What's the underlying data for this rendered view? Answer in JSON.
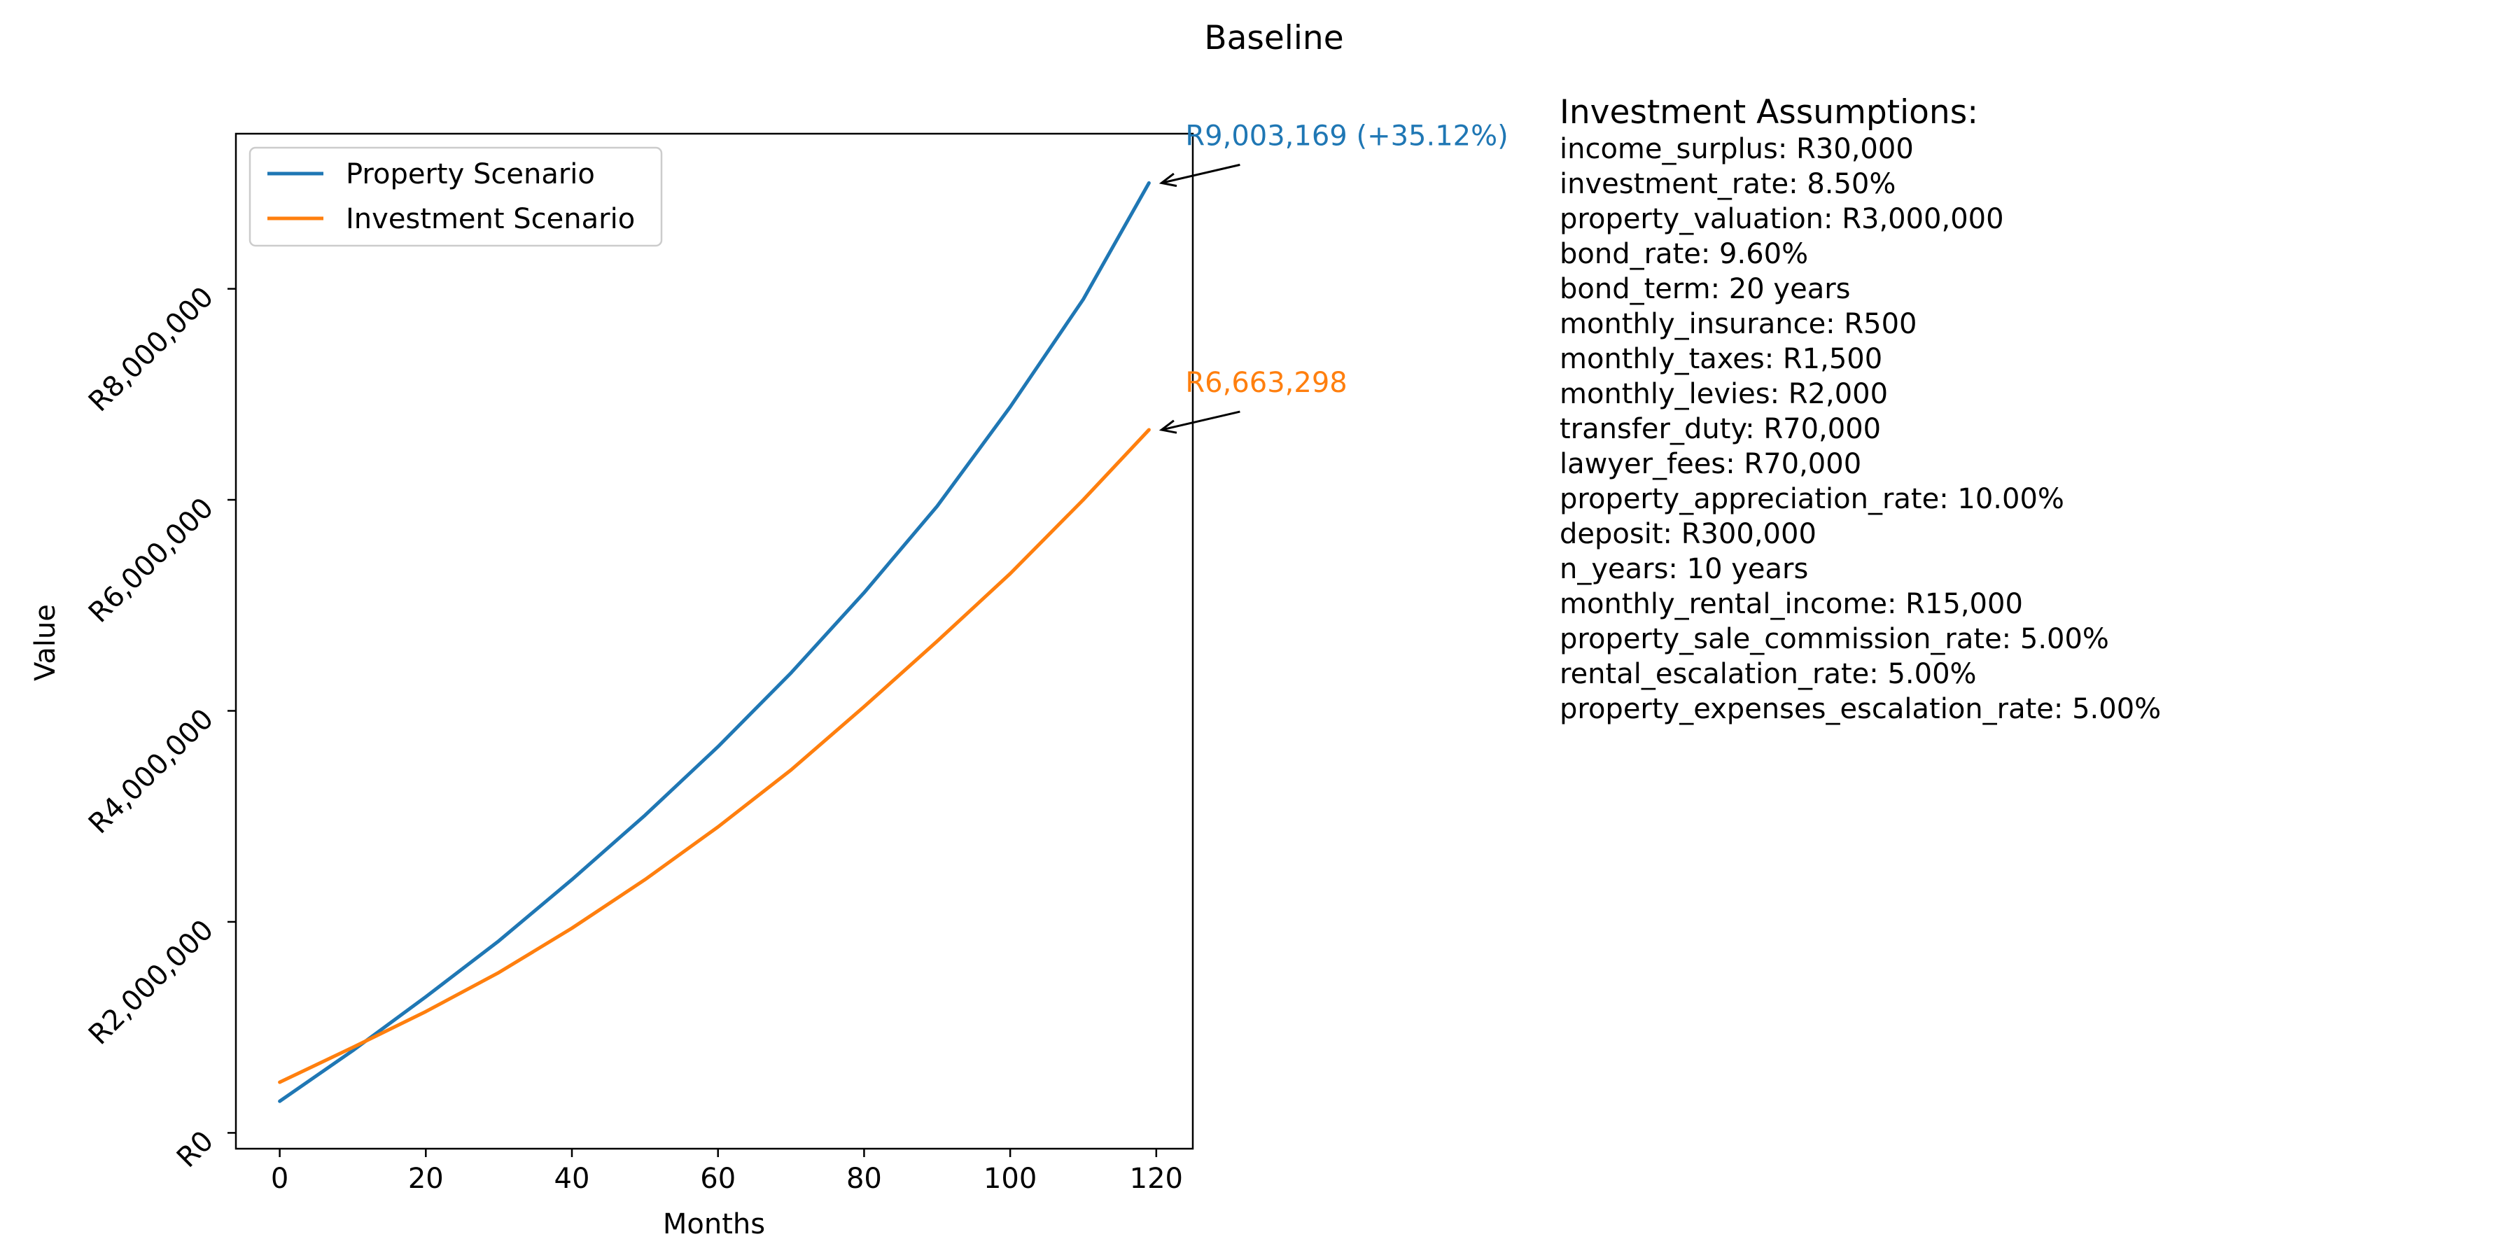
{
  "colors": {
    "property_series": "#1f77b4",
    "investment_series": "#ff7f0e"
  },
  "chart_data": {
    "type": "line",
    "title": "Baseline",
    "xlabel": "Months",
    "ylabel": "Value",
    "xlim": [
      -6,
      125
    ],
    "ylim": [
      -150000,
      9470000
    ],
    "x_ticks": [
      0,
      20,
      40,
      60,
      80,
      100,
      120
    ],
    "x_tick_labels": [
      "0",
      "20",
      "40",
      "60",
      "80",
      "100",
      "120"
    ],
    "y_ticks": [
      0,
      2000000,
      4000000,
      6000000,
      8000000
    ],
    "y_tick_labels": [
      "R0",
      "R2,000,000",
      "R4,000,000",
      "R6,000,000",
      "R8,000,000"
    ],
    "grid": false,
    "legend": {
      "placement": "top-left",
      "entries": [
        "Property Scenario",
        "Investment Scenario"
      ]
    },
    "x": [
      0,
      10,
      20,
      30,
      40,
      50,
      60,
      70,
      80,
      90,
      100,
      110,
      119
    ],
    "series": [
      {
        "name": "Property Scenario",
        "color": "#1f77b4",
        "values": [
          300000,
          780000,
          1290000,
          1820000,
          2400000,
          3010000,
          3660000,
          4360000,
          5120000,
          5940000,
          6880000,
          7900000,
          9003169
        ]
      },
      {
        "name": "Investment Scenario",
        "color": "#ff7f0e",
        "values": [
          480000,
          810000,
          1150000,
          1520000,
          1940000,
          2400000,
          2900000,
          3440000,
          4040000,
          4660000,
          5300000,
          6000000,
          6663298
        ]
      }
    ],
    "annotations": [
      {
        "series": 0,
        "text": "R9,003,169 (+35.12%)",
        "color": "#1f77b4"
      },
      {
        "series": 1,
        "text": "R6,663,298",
        "color": "#ff7f0e"
      }
    ]
  },
  "assumptions": {
    "heading": "Investment Assumptions:",
    "items": [
      "income_surplus: R30,000",
      "investment_rate: 8.50%",
      "property_valuation: R3,000,000",
      "bond_rate: 9.60%",
      "bond_term: 20 years",
      "monthly_insurance: R500",
      "monthly_taxes: R1,500",
      "monthly_levies: R2,000",
      "transfer_duty: R70,000",
      "lawyer_fees: R70,000",
      "property_appreciation_rate: 10.00%",
      "deposit: R300,000",
      "n_years: 10 years",
      "monthly_rental_income: R15,000",
      "property_sale_commission_rate: 5.00%",
      "rental_escalation_rate: 5.00%",
      "property_expenses_escalation_rate: 5.00%"
    ]
  }
}
